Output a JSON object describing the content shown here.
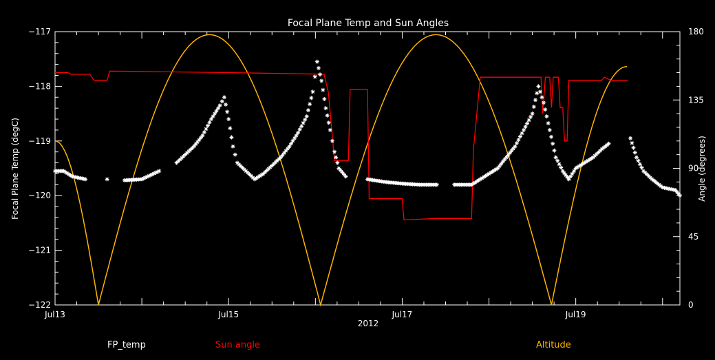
{
  "chart_data": {
    "type": "line",
    "title": "Focal Plane Temp and Sun Angles",
    "xlabel": "2012",
    "ylabel_left": "Focal Plane Temp (degC)",
    "ylabel_right": "Angle (degrees)",
    "xlim": [
      13.0,
      20.2
    ],
    "ylim_left": [
      -122,
      -117
    ],
    "ylim_right": [
      0,
      180
    ],
    "x_ticks": [
      {
        "x": 13,
        "label": "Jul13"
      },
      {
        "x": 15,
        "label": "Jul15"
      },
      {
        "x": 17,
        "label": "Jul17"
      },
      {
        "x": 19,
        "label": "Jul19"
      }
    ],
    "y_ticks_left": [
      "-117",
      "-118",
      "-119",
      "-120",
      "-121",
      "-122"
    ],
    "y_ticks_right": [
      "180",
      "135",
      "90",
      "45",
      "0"
    ],
    "grid": false,
    "colors": {
      "fp_temp": "#ffffff",
      "sun_angle": "#ff0000",
      "altitude": "#ffb400"
    },
    "legend": [
      "FP_temp",
      "Sun angle",
      "Altitude"
    ],
    "series": [
      {
        "name": "FP_temp",
        "axis": "left",
        "marker": "asterisk",
        "points": [
          [
            13.0,
            -119.55
          ],
          [
            13.1,
            -119.55
          ],
          [
            13.2,
            -119.65
          ],
          [
            13.35,
            -119.7
          ],
          [
            13.6,
            -119.7
          ],
          [
            13.8,
            -119.72
          ],
          [
            14.0,
            -119.7
          ],
          [
            14.2,
            -119.55
          ],
          [
            14.4,
            -119.4
          ],
          [
            14.6,
            -119.1
          ],
          [
            14.7,
            -118.9
          ],
          [
            14.8,
            -118.6
          ],
          [
            14.9,
            -118.35
          ],
          [
            14.95,
            -118.2
          ],
          [
            15.0,
            -118.6
          ],
          [
            15.05,
            -119.1
          ],
          [
            15.1,
            -119.4
          ],
          [
            15.2,
            -119.55
          ],
          [
            15.3,
            -119.7
          ],
          [
            15.4,
            -119.6
          ],
          [
            15.5,
            -119.45
          ],
          [
            15.6,
            -119.3
          ],
          [
            15.7,
            -119.1
          ],
          [
            15.8,
            -118.85
          ],
          [
            15.9,
            -118.55
          ],
          [
            15.97,
            -118.1
          ],
          [
            16.02,
            -117.55
          ],
          [
            16.07,
            -117.9
          ],
          [
            16.12,
            -118.4
          ],
          [
            16.17,
            -118.8
          ],
          [
            16.22,
            -119.2
          ],
          [
            16.27,
            -119.5
          ],
          [
            16.35,
            -119.65
          ],
          [
            16.6,
            -119.7
          ],
          [
            16.8,
            -119.75
          ],
          [
            17.0,
            -119.78
          ],
          [
            17.2,
            -119.8
          ],
          [
            17.4,
            -119.8
          ],
          [
            17.6,
            -119.8
          ],
          [
            17.8,
            -119.8
          ],
          [
            17.9,
            -119.7
          ],
          [
            18.0,
            -119.6
          ],
          [
            18.1,
            -119.5
          ],
          [
            18.2,
            -119.3
          ],
          [
            18.3,
            -119.1
          ],
          [
            18.4,
            -118.8
          ],
          [
            18.5,
            -118.5
          ],
          [
            18.57,
            -118.0
          ],
          [
            18.63,
            -118.3
          ],
          [
            18.7,
            -118.8
          ],
          [
            18.77,
            -119.3
          ],
          [
            18.85,
            -119.55
          ],
          [
            18.92,
            -119.7
          ],
          [
            19.0,
            -119.5
          ],
          [
            19.1,
            -119.4
          ],
          [
            19.2,
            -119.3
          ],
          [
            19.3,
            -119.15
          ],
          [
            19.38,
            -119.05
          ],
          [
            19.63,
            -118.95
          ],
          [
            19.7,
            -119.3
          ],
          [
            19.78,
            -119.55
          ],
          [
            19.88,
            -119.7
          ],
          [
            20.0,
            -119.85
          ],
          [
            20.15,
            -119.9
          ],
          [
            20.2,
            -120.0
          ]
        ]
      },
      {
        "name": "Sun angle",
        "axis": "right",
        "points": [
          [
            13.0,
            153
          ],
          [
            13.15,
            153
          ],
          [
            13.18,
            152
          ],
          [
            13.4,
            152
          ],
          [
            13.45,
            148
          ],
          [
            13.6,
            148
          ],
          [
            13.63,
            154
          ],
          [
            15.0,
            153
          ],
          [
            16.1,
            152
          ],
          [
            16.15,
            140
          ],
          [
            16.22,
            95
          ],
          [
            16.38,
            95
          ],
          [
            16.4,
            142
          ],
          [
            16.6,
            142
          ],
          [
            16.62,
            70
          ],
          [
            17.0,
            70
          ],
          [
            17.02,
            56
          ],
          [
            17.4,
            57
          ],
          [
            17.8,
            57
          ],
          [
            17.82,
            102
          ],
          [
            17.9,
            150
          ],
          [
            18.6,
            150
          ],
          [
            18.62,
            126
          ],
          [
            18.65,
            150
          ],
          [
            18.7,
            150
          ],
          [
            18.72,
            130
          ],
          [
            18.74,
            150
          ],
          [
            18.8,
            150
          ],
          [
            18.82,
            130
          ],
          [
            18.85,
            130
          ],
          [
            18.87,
            108
          ],
          [
            18.9,
            108
          ],
          [
            18.92,
            148
          ],
          [
            19.3,
            148
          ],
          [
            19.33,
            150
          ],
          [
            19.4,
            148
          ],
          [
            19.6,
            148
          ]
        ]
      },
      {
        "name": "Altitude",
        "axis": "right",
        "shape": "abs-sine",
        "zeros": [
          13.5,
          16.06,
          18.72
        ],
        "peaks": [
          14.78,
          17.39
        ],
        "peak_value": 178,
        "start": [
          13.0,
          108
        ],
        "end": [
          19.59,
          157
        ]
      }
    ]
  }
}
